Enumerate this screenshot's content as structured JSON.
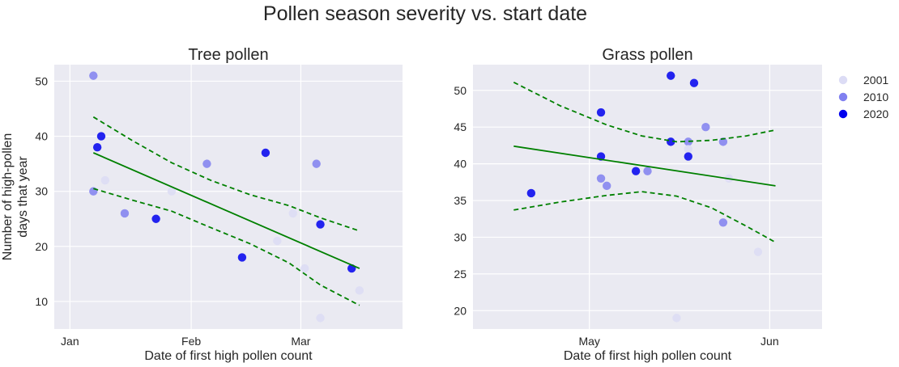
{
  "figure": {
    "suptitle": "Pollen season severity vs. start date"
  },
  "legend": {
    "title": "",
    "placement": "right",
    "entries": [
      {
        "label": "2001",
        "color": "#dcdcf5"
      },
      {
        "label": "2010",
        "color": "#8080f0"
      },
      {
        "label": "2020",
        "color": "#0000ee"
      }
    ]
  },
  "chart_data": [
    {
      "type": "scatter",
      "title": "Tree pollen",
      "xlabel": "Date of first high pollen count",
      "ylabel": "Number of high-pollen\ndays that year",
      "x_ticks": [
        "Jan",
        "Feb",
        "Mar"
      ],
      "x_tick_dates": [
        "01-01",
        "02-01",
        "03-01"
      ],
      "xlim": [
        "12-28",
        "03-27"
      ],
      "y_ticks": [
        10,
        20,
        30,
        40,
        50
      ],
      "ylim": [
        5,
        53
      ],
      "grid": true,
      "points": [
        {
          "date": "01-07",
          "y": 51,
          "year": "2010"
        },
        {
          "date": "01-07",
          "y": 30,
          "year": "2010"
        },
        {
          "date": "01-08",
          "y": 38,
          "year": "2020"
        },
        {
          "date": "01-09",
          "y": 40,
          "year": "2020"
        },
        {
          "date": "01-10",
          "y": 32,
          "year": "2001"
        },
        {
          "date": "01-15",
          "y": 26,
          "year": "2010"
        },
        {
          "date": "01-23",
          "y": 25,
          "year": "2020"
        },
        {
          "date": "01-27",
          "y": 30,
          "year": "2001"
        },
        {
          "date": "02-05",
          "y": 35,
          "year": "2010"
        },
        {
          "date": "02-14",
          "y": 18,
          "year": "2020"
        },
        {
          "date": "02-20",
          "y": 37,
          "year": "2020"
        },
        {
          "date": "02-23",
          "y": 21,
          "year": "2001"
        },
        {
          "date": "02-27",
          "y": 26,
          "year": "2001"
        },
        {
          "date": "03-02",
          "y": 16,
          "year": "2001"
        },
        {
          "date": "03-05",
          "y": 35,
          "year": "2010"
        },
        {
          "date": "03-06",
          "y": 24,
          "year": "2020"
        },
        {
          "date": "03-06",
          "y": 7,
          "year": "2001"
        },
        {
          "date": "03-14",
          "y": 16,
          "year": "2020"
        },
        {
          "date": "03-16",
          "y": 12,
          "year": "2001"
        }
      ],
      "fit": {
        "x": [
          "01-07",
          "03-16"
        ],
        "y": [
          37,
          16
        ]
      },
      "band_lower": {
        "x": [
          "01-07",
          "01-17",
          "01-27",
          "02-06",
          "02-16",
          "02-26",
          "03-06",
          "03-16"
        ],
        "y": [
          30.5,
          28.4,
          26.4,
          23.4,
          20.5,
          17,
          13,
          9.3
        ]
      },
      "band_upper": {
        "x": [
          "01-07",
          "01-17",
          "01-27",
          "02-06",
          "02-16",
          "02-26",
          "03-06",
          "03-16"
        ],
        "y": [
          43.5,
          39.2,
          35.2,
          32,
          29.4,
          27.4,
          25.2,
          22.8
        ]
      }
    },
    {
      "type": "scatter",
      "title": "Grass pollen",
      "xlabel": "Date of first high pollen count",
      "ylabel": "",
      "x_ticks": [
        "May",
        "Jun"
      ],
      "x_tick_dates": [
        "05-01",
        "06-01"
      ],
      "xlim": [
        "04-11",
        "06-10"
      ],
      "y_ticks": [
        20,
        25,
        30,
        35,
        40,
        45,
        50
      ],
      "ylim": [
        17.5,
        53.5
      ],
      "grid": true,
      "points": [
        {
          "date": "04-21",
          "y": 36,
          "year": "2020"
        },
        {
          "date": "05-03",
          "y": 47,
          "year": "2020"
        },
        {
          "date": "05-03",
          "y": 41,
          "year": "2020"
        },
        {
          "date": "05-03",
          "y": 38,
          "year": "2010"
        },
        {
          "date": "05-04",
          "y": 37,
          "year": "2010"
        },
        {
          "date": "05-09",
          "y": 39,
          "year": "2020"
        },
        {
          "date": "05-11",
          "y": 39,
          "year": "2010"
        },
        {
          "date": "05-15",
          "y": 52,
          "year": "2020"
        },
        {
          "date": "05-15",
          "y": 43,
          "year": "2020"
        },
        {
          "date": "05-16",
          "y": 19,
          "year": "2001"
        },
        {
          "date": "05-18",
          "y": 43,
          "year": "2010"
        },
        {
          "date": "05-18",
          "y": 42,
          "year": "2001"
        },
        {
          "date": "05-18",
          "y": 41,
          "year": "2020"
        },
        {
          "date": "05-19",
          "y": 51,
          "year": "2020"
        },
        {
          "date": "05-21",
          "y": 45,
          "year": "2010"
        },
        {
          "date": "05-24",
          "y": 43,
          "year": "2010"
        },
        {
          "date": "05-24",
          "y": 32,
          "year": "2010"
        },
        {
          "date": "05-25",
          "y": 38,
          "year": "2001"
        },
        {
          "date": "05-30",
          "y": 28,
          "year": "2001"
        }
      ],
      "fit": {
        "x": [
          "04-18",
          "06-02"
        ],
        "y": [
          42.4,
          37
        ]
      },
      "band_lower": {
        "x": [
          "04-18",
          "04-26",
          "05-04",
          "05-10",
          "05-16",
          "05-22",
          "05-28",
          "06-02"
        ],
        "y": [
          33.7,
          34.8,
          35.7,
          36.2,
          35.6,
          34,
          31.5,
          29.3
        ]
      },
      "band_upper": {
        "x": [
          "04-18",
          "04-26",
          "05-04",
          "05-10",
          "05-16",
          "05-22",
          "05-28",
          "06-02"
        ],
        "y": [
          51.1,
          47.9,
          45.3,
          43.8,
          43,
          43.2,
          43.8,
          44.6
        ]
      }
    }
  ]
}
